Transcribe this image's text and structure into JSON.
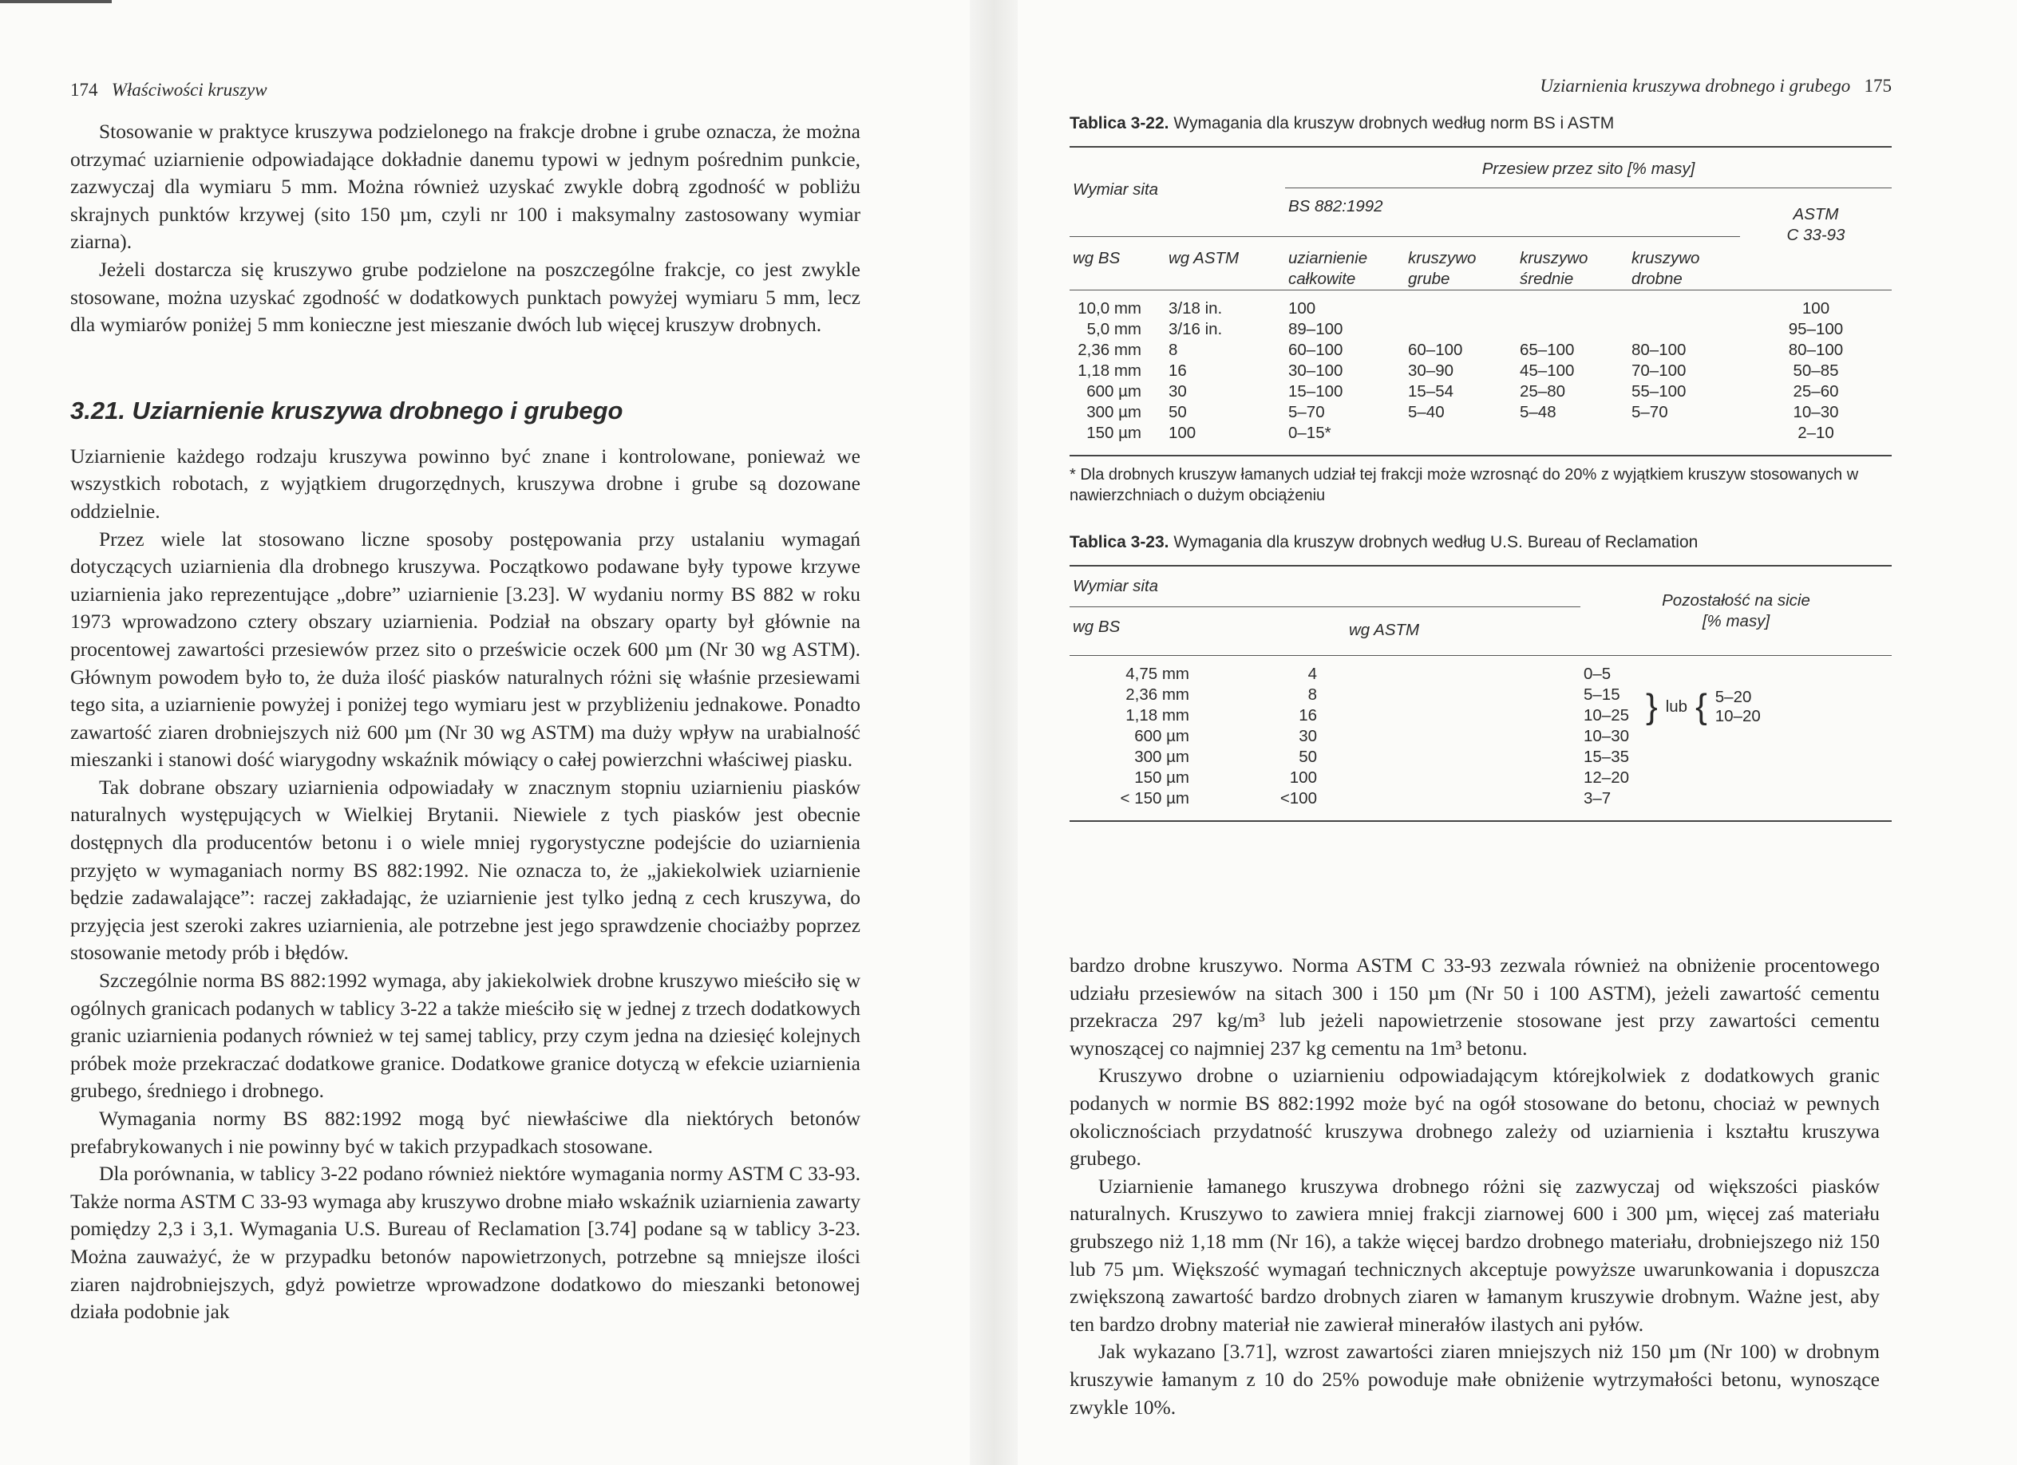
{
  "left_page": {
    "page_number": "174",
    "running_head": "Właściwości kruszyw",
    "intro_paragraphs": [
      "Stosowanie w praktyce kruszywa podzielonego na frakcje drobne i grube oznacza, że można otrzymać uziarnienie odpowiadające dokładnie danemu typowi w jednym pośrednim punkcie, zazwyczaj dla wymiaru 5 mm. Można również uzyskać zwykle dobrą zgodność w pobliżu skrajnych punktów krzywej (sito 150 µm, czyli nr 100 i maksymalny zastosowany wymiar ziarna).",
      "Jeżeli dostarcza się kruszywo grube podzielone na poszczególne frakcje, co jest zwykle stosowane, można uzyskać zgodność w dodatkowych punktach powyżej wymiaru 5 mm, lecz dla wymiarów poniżej 5 mm konieczne jest mieszanie dwóch lub więcej kruszyw drobnych."
    ],
    "section_heading": "3.21. Uziarnienie kruszywa drobnego i grubego",
    "section_paragraphs": [
      "Uziarnienie każdego rodzaju kruszywa powinno być znane i kontrolowane, ponieważ we wszystkich robotach, z wyjątkiem drugorzędnych, kruszywa drobne i grube są dozowane oddzielnie.",
      "Przez wiele lat stosowano liczne sposoby postępowania przy ustalaniu wymagań dotyczących uziarnienia dla drobnego kruszywa. Początkowo podawane były typowe krzywe uziarnienia jako reprezentujące „dobre” uziarnienie [3.23]. W wydaniu normy BS 882 w roku 1973 wprowadzono cztery obszary uziarnienia. Podział na obszary oparty był głównie na procentowej zawartości przesiewów przez sito o prześwicie oczek 600 µm (Nr 30 wg ASTM). Głównym powodem było to, że duża ilość piasków naturalnych różni się właśnie przesiewami tego sita, a uziarnienie powyżej i poniżej tego wymiaru jest w przybliżeniu jednakowe. Ponadto zawartość ziaren drobniejszych niż 600 µm (Nr 30 wg ASTM) ma duży wpływ na urabialność mieszanki i stanowi dość wiarygodny wskaźnik mówiący o całej powierzchni właściwej piasku.",
      "Tak dobrane obszary uziarnienia odpowiadały w znacznym stopniu uziarnieniu piasków naturalnych występujących w Wielkiej Brytanii. Niewiele z tych piasków jest obecnie dostępnych dla producentów betonu i o wiele mniej rygorystyczne podejście do uziarnienia przyjęto w wymaganiach normy BS 882:1992. Nie oznacza to, że „jakiekolwiek uziarnienie będzie zadawalające”: raczej zakładając, że uziarnienie jest tylko jedną z cech kruszywa, do przyjęcia jest szeroki zakres uziarnienia, ale potrzebne jest jego sprawdzenie chociażby poprzez stosowanie metody prób i błędów.",
      "Szczególnie norma BS 882:1992 wymaga, aby jakiekolwiek drobne kruszywo mieściło się w ogólnych granicach podanych w tablicy 3-22 a także mieściło się w jednej z trzech dodatkowych granic uziarnienia podanych również w tej samej tablicy, przy czym jedna na dziesięć kolejnych próbek może przekraczać dodatkowe granice. Dodatkowe granice dotyczą w efekcie uziarnienia grubego, średniego i drobnego.",
      "Wymagania normy BS 882:1992 mogą być niewłaściwe dla niektórych betonów prefabrykowanych i nie powinny być w takich przypadkach stosowane.",
      "Dla porównania, w tablicy 3-22 podano również niektóre wymagania normy ASTM C 33-93. Także norma ASTM C 33-93 wymaga aby kruszywo drobne miało wskaźnik uziarnienia zawarty pomiędzy 2,3 i 3,1. Wymagania U.S. Bureau of Reclamation [3.74] podane są w tablicy 3-23. Można zauważyć, że w przypadku betonów napowietrzonych, potrzebne są mniejsze ilości ziaren najdrobniejszych, gdyż powietrze wprowadzone dodatkowo do mieszanki betonowej działa podobnie jak"
    ]
  },
  "right_page": {
    "page_number": "175",
    "running_head": "Uziarnienia kruszywa drobnego i grubego",
    "table_3_22": {
      "label": "Tablica 3-22.",
      "title": "Wymagania dla kruszyw drobnych według norm BS i ASTM",
      "h_sieve": "Wymiar sita",
      "h_passing": "Przesiew przez sito [% masy]",
      "h_bs": "BS 882:1992",
      "h_astm_1": "ASTM",
      "h_astm_2": "C 33-93",
      "h_wg_bs": "wg BS",
      "h_wg_astm": "wg ASTM",
      "h_overall_1": "uziarnienie",
      "h_overall_2": "całkowite",
      "h_coarse_1": "kruszywo",
      "h_coarse_2": "grube",
      "h_medium_1": "kruszywo",
      "h_medium_2": "średnie",
      "h_fine_1": "kruszywo",
      "h_fine_2": "drobne",
      "rows": [
        {
          "bs": "10,0 mm",
          "astm": "3/18 in.",
          "overall": "100",
          "coarse": "",
          "medium": "",
          "fine": "",
          "c33": "100"
        },
        {
          "bs": "5,0 mm",
          "astm": "3/16 in.",
          "overall": "89–100",
          "coarse": "",
          "medium": "",
          "fine": "",
          "c33": "95–100"
        },
        {
          "bs": "2,36 mm",
          "astm": "8",
          "overall": "60–100",
          "coarse": "60–100",
          "medium": "65–100",
          "fine": "80–100",
          "c33": "80–100"
        },
        {
          "bs": "1,18 mm",
          "astm": "16",
          "overall": "30–100",
          "coarse": "30–90",
          "medium": "45–100",
          "fine": "70–100",
          "c33": "50–85"
        },
        {
          "bs": "600 µm",
          "astm": "30",
          "overall": "15–100",
          "coarse": "15–54",
          "medium": "25–80",
          "fine": "55–100",
          "c33": "25–60"
        },
        {
          "bs": "300 µm",
          "astm": "50",
          "overall": "5–70",
          "coarse": "5–40",
          "medium": "5–48",
          "fine": "5–70",
          "c33": "10–30"
        },
        {
          "bs": "150 µm",
          "astm": "100",
          "overall": "0–15*",
          "coarse": "",
          "medium": "",
          "fine": "",
          "c33": "2–10"
        }
      ],
      "footnote": "* Dla drobnych kruszyw łamanych udział tej frakcji może wzrosnąć do 20% z wyjątkiem kruszyw stosowanych w nawierzchniach o dużym obciążeniu"
    },
    "table_3_23": {
      "label": "Tablica 3-23.",
      "title": "Wymagania dla kruszyw drobnych według U.S. Bureau of Reclamation",
      "h_sieve": "Wymiar sita",
      "h_wg_bs": "wg BS",
      "h_wg_astm": "wg ASTM",
      "h_residue_1": "Pozostałość na sicie",
      "h_residue_2": "[% masy]",
      "rows": [
        {
          "bs": "4,75 mm",
          "astm": "4",
          "residue": "0–5"
        },
        {
          "bs": "2,36 mm",
          "astm": "8",
          "residue": "5–15"
        },
        {
          "bs": "1,18 mm",
          "astm": "16",
          "residue": "10–25"
        },
        {
          "bs": "600 µm",
          "astm": "30",
          "residue": "10–30"
        },
        {
          "bs": "300 µm",
          "astm": "50",
          "residue": "15–35"
        },
        {
          "bs": "150 µm",
          "astm": "100",
          "residue": "12–20"
        },
        {
          "bs": "< 150 µm",
          "astm": "<100",
          "residue": "3–7"
        }
      ],
      "or_label": "lub",
      "alt_1": "5–20",
      "alt_2": "10–20"
    },
    "paragraphs": [
      "bardzo drobne kruszywo. Norma ASTM C 33-93 zezwala również na obniżenie procentowego udziału przesiewów na sitach 300 i 150 µm (Nr 50 i 100 ASTM), jeżeli zawartość cementu przekracza 297 kg/m³ lub jeżeli napowietrzenie stosowane jest przy zawartości cementu wynoszącej co najmniej 237 kg cementu na 1m³ betonu.",
      "Kruszywo drobne o uziarnieniu odpowiadającym którejkolwiek z dodatkowych granic podanych w normie BS 882:1992 może być na ogół stosowane do betonu, chociaż w pewnych okolicznościach przydatność kruszywa drobnego zależy od uziarnienia i kształtu kruszywa grubego.",
      "Uziarnienie łamanego kruszywa drobnego różni się zazwyczaj od większości piasków naturalnych. Kruszywo to zawiera mniej frakcji ziarnowej 600 i 300 µm, więcej zaś materiału grubszego niż 1,18 mm (Nr 16), a także więcej bardzo drobnego materiału, drobniejszego niż 150 lub 75 µm. Większość wymagań technicznych akceptuje powyższe uwarunkowania i dopuszcza zwiększoną zawartość bardzo drobnych ziaren w łamanym kruszywie drobnym. Ważne jest, aby ten bardzo drobny materiał nie zawierał minerałów ilastych ani pyłów.",
      "Jak wykazano [3.71], wzrost zawartości ziaren mniejszych niż 150 µm (Nr 100) w drobnym kruszywie łamanym z 10 do 25% powoduje małe obniżenie wytrzymałości betonu, wynoszące zwykle 10%."
    ]
  }
}
